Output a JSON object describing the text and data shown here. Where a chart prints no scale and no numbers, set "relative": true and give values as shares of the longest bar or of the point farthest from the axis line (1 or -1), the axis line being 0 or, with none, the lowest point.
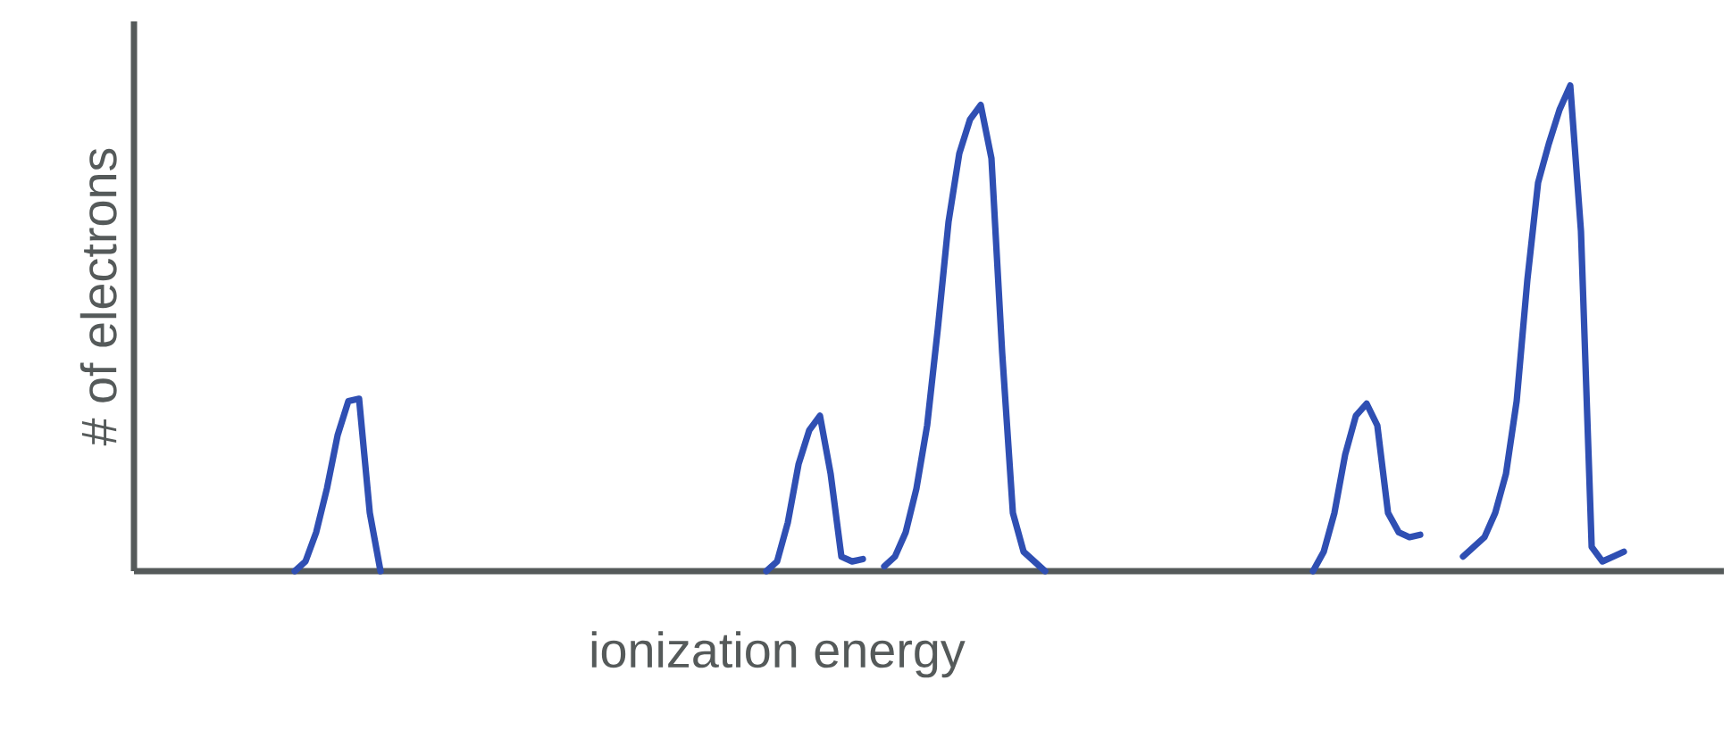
{
  "chart_data": {
    "type": "line",
    "relative": true,
    "xlabel": "ionization energy",
    "ylabel": "# of electrons",
    "categories": [
      null,
      null,
      null,
      null,
      null,
      null,
      null,
      null,
      null,
      null,
      null,
      null,
      null,
      null,
      null,
      null,
      null,
      null,
      null,
      null,
      null,
      null,
      null,
      null,
      null,
      null,
      null,
      null,
      null,
      null,
      null,
      null,
      null,
      null,
      null,
      null,
      null,
      null,
      null,
      null,
      null,
      null,
      null,
      null,
      null,
      null,
      null,
      null,
      null,
      null,
      null,
      null,
      null,
      null,
      null,
      null,
      null,
      null,
      null,
      null,
      null,
      null,
      null,
      null,
      null,
      null,
      null,
      null,
      null,
      null,
      null,
      null,
      null,
      null,
      null,
      null,
      null,
      null,
      null,
      null,
      null,
      null,
      null,
      null,
      null,
      null,
      null,
      null,
      null,
      null,
      null,
      null,
      null,
      null,
      null,
      null,
      null,
      null,
      null,
      null,
      null,
      null,
      null,
      null,
      null,
      null,
      null,
      null,
      null,
      null,
      null,
      null,
      null,
      null,
      null,
      null,
      null,
      null,
      null,
      null,
      null,
      null,
      null,
      null,
      null,
      null,
      null,
      null,
      null,
      null,
      null,
      null,
      null,
      null,
      null,
      null,
      null,
      null,
      null,
      null,
      null,
      null,
      null,
      null,
      null,
      null,
      null,
      null,
      null
    ],
    "series": [
      {
        "color": "#2f4fb3",
        "values": [
          null,
          null,
          null,
          null,
          null,
          null,
          null,
          null,
          null,
          null,
          null,
          null,
          null,
          null,
          null,
          0,
          0.02,
          0.08,
          0.17,
          0.28,
          0.35,
          0.355,
          0.12,
          0,
          null,
          null,
          null,
          null,
          null,
          null,
          null,
          null,
          null,
          null,
          null,
          null,
          null,
          null,
          null,
          null,
          null,
          null,
          null,
          null,
          null,
          null,
          null,
          null,
          null,
          null,
          null,
          null,
          null,
          null,
          null,
          null,
          null,
          null,
          null,
          null,
          null,
          null,
          null,
          null,
          null,
          null,
          null,
          null,
          null,
          null,
          null,
          null,
          null,
          null,
          null,
          null,
          null,
          null,
          null,
          null,
          null,
          null,
          null,
          null,
          null,
          null,
          null,
          null,
          null,
          null,
          null,
          null,
          null,
          null,
          null,
          null,
          null,
          null,
          null,
          null,
          null,
          null,
          null,
          null,
          null,
          null,
          null,
          null,
          null,
          null,
          null,
          null,
          null,
          null,
          null,
          null,
          null,
          null,
          null,
          null,
          null,
          null,
          null,
          null,
          null,
          null,
          null,
          null,
          null,
          null,
          null,
          null,
          null,
          null,
          null,
          null,
          null,
          null,
          null,
          null,
          null,
          null,
          null,
          null,
          null,
          null,
          null,
          null,
          null
        ]
      },
      {
        "color": "#2f4fb3",
        "values": [
          null,
          null,
          null,
          null,
          null,
          null,
          null,
          null,
          null,
          null,
          null,
          null,
          null,
          null,
          null,
          null,
          null,
          null,
          null,
          null,
          null,
          null,
          null,
          null,
          null,
          null,
          null,
          null,
          null,
          null,
          null,
          null,
          null,
          null,
          null,
          null,
          null,
          null,
          null,
          null,
          null,
          null,
          null,
          null,
          null,
          null,
          null,
          null,
          null,
          null,
          null,
          null,
          null,
          null,
          null,
          null,
          null,
          null,
          null,
          0,
          0.02,
          0.1,
          0.22,
          0.29,
          0.32,
          0.2,
          0.03,
          0.02,
          0.025,
          null,
          null,
          null,
          null,
          null,
          null,
          null,
          null,
          null,
          null,
          null,
          null,
          null,
          null,
          null,
          null,
          null,
          null,
          null,
          null,
          null,
          null,
          null,
          null,
          null,
          null,
          null,
          null,
          null,
          null,
          null,
          null,
          null,
          null,
          null,
          null,
          null,
          null,
          null,
          null,
          null,
          null,
          null,
          null,
          null,
          null,
          null,
          null,
          null,
          null,
          null,
          null,
          null,
          null,
          null,
          null,
          null,
          null,
          null,
          null,
          null,
          null,
          null,
          null,
          null,
          null,
          null,
          null,
          null,
          null,
          null,
          null,
          null,
          null,
          null,
          null,
          null,
          null,
          null,
          null
        ]
      },
      {
        "color": "#2f4fb3",
        "values": [
          null,
          null,
          null,
          null,
          null,
          null,
          null,
          null,
          null,
          null,
          null,
          null,
          null,
          null,
          null,
          null,
          null,
          null,
          null,
          null,
          null,
          null,
          null,
          null,
          null,
          null,
          null,
          null,
          null,
          null,
          null,
          null,
          null,
          null,
          null,
          null,
          null,
          null,
          null,
          null,
          null,
          null,
          null,
          null,
          null,
          null,
          null,
          null,
          null,
          null,
          null,
          null,
          null,
          null,
          null,
          null,
          null,
          null,
          null,
          null,
          null,
          null,
          null,
          null,
          null,
          null,
          null,
          null,
          null,
          null,
          0.01,
          0.03,
          0.08,
          0.17,
          0.3,
          0.5,
          0.72,
          0.86,
          0.93,
          0.96,
          0.85,
          0.45,
          0.12,
          0.04,
          0.02,
          0,
          null,
          null,
          null,
          null,
          null,
          null,
          null,
          null,
          null,
          null,
          null,
          null,
          null,
          null,
          null,
          null,
          null,
          null,
          null,
          null,
          null,
          null,
          null,
          null,
          null,
          null,
          null,
          null,
          null,
          null,
          null,
          null,
          null,
          null,
          null,
          null,
          null,
          null,
          null,
          null,
          null,
          null,
          null,
          null,
          null,
          null,
          null,
          null,
          null,
          null,
          null,
          null,
          null,
          null,
          null,
          null,
          null,
          null,
          null,
          null,
          null,
          null,
          null
        ]
      },
      {
        "color": "#2f4fb3",
        "values": [
          null,
          null,
          null,
          null,
          null,
          null,
          null,
          null,
          null,
          null,
          null,
          null,
          null,
          null,
          null,
          null,
          null,
          null,
          null,
          null,
          null,
          null,
          null,
          null,
          null,
          null,
          null,
          null,
          null,
          null,
          null,
          null,
          null,
          null,
          null,
          null,
          null,
          null,
          null,
          null,
          null,
          null,
          null,
          null,
          null,
          null,
          null,
          null,
          null,
          null,
          null,
          null,
          null,
          null,
          null,
          null,
          null,
          null,
          null,
          null,
          null,
          null,
          null,
          null,
          null,
          null,
          null,
          null,
          null,
          null,
          null,
          null,
          null,
          null,
          null,
          null,
          null,
          null,
          null,
          null,
          null,
          null,
          null,
          null,
          null,
          null,
          null,
          null,
          null,
          null,
          null,
          null,
          null,
          null,
          null,
          null,
          null,
          null,
          null,
          null,
          null,
          null,
          null,
          null,
          null,
          null,
          null,
          null,
          null,
          null,
          0,
          0.04,
          0.12,
          0.24,
          0.32,
          0.345,
          0.3,
          0.12,
          0.08,
          0.07,
          0.075,
          null,
          null,
          null,
          null,
          null,
          null,
          null,
          null,
          null,
          null,
          null,
          null,
          null,
          null,
          null,
          null,
          null,
          null,
          null,
          null,
          null,
          null,
          null,
          null,
          null,
          null,
          null,
          null
        ]
      },
      {
        "color": "#2f4fb3",
        "values": [
          null,
          null,
          null,
          null,
          null,
          null,
          null,
          null,
          null,
          null,
          null,
          null,
          null,
          null,
          null,
          null,
          null,
          null,
          null,
          null,
          null,
          null,
          null,
          null,
          null,
          null,
          null,
          null,
          null,
          null,
          null,
          null,
          null,
          null,
          null,
          null,
          null,
          null,
          null,
          null,
          null,
          null,
          null,
          null,
          null,
          null,
          null,
          null,
          null,
          null,
          null,
          null,
          null,
          null,
          null,
          null,
          null,
          null,
          null,
          null,
          null,
          null,
          null,
          null,
          null,
          null,
          null,
          null,
          null,
          null,
          null,
          null,
          null,
          null,
          null,
          null,
          null,
          null,
          null,
          null,
          null,
          null,
          null,
          null,
          null,
          null,
          null,
          null,
          null,
          null,
          null,
          null,
          null,
          null,
          null,
          null,
          null,
          null,
          null,
          null,
          null,
          null,
          null,
          null,
          null,
          null,
          null,
          null,
          null,
          null,
          null,
          null,
          null,
          null,
          null,
          null,
          null,
          null,
          null,
          null,
          null,
          null,
          null,
          null,
          0.03,
          0.05,
          0.07,
          0.12,
          0.2,
          0.35,
          0.6,
          0.8,
          0.88,
          0.95,
          1,
          0.7,
          0.05,
          0.02,
          0.03,
          0.04,
          null,
          null,
          null,
          null,
          null,
          null,
          null,
          null,
          null
        ]
      }
    ]
  }
}
